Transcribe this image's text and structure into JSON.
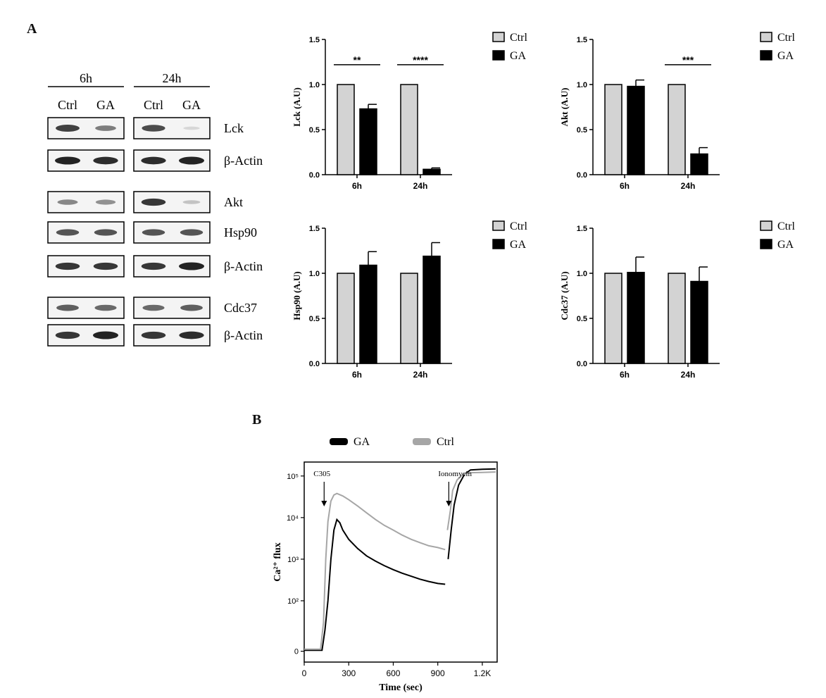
{
  "panels": {
    "a": "A",
    "b": "B"
  },
  "blot": {
    "timepoints": [
      "6h",
      "24h"
    ],
    "conditions": [
      "Ctrl",
      "GA",
      "Ctrl",
      "GA"
    ],
    "rows": [
      {
        "label": "Lck",
        "bands": [
          0.85,
          0.55,
          0.8,
          0.1
        ]
      },
      {
        "label": "β-Actin",
        "bands": [
          1,
          0.95,
          0.95,
          1
        ]
      },
      {
        "label": "Akt",
        "bands": [
          0.5,
          0.45,
          0.9,
          0.2
        ]
      },
      {
        "label": "Hsp90",
        "bands": [
          0.75,
          0.75,
          0.75,
          0.75
        ]
      },
      {
        "label": "β-Actin",
        "bands": [
          0.9,
          0.9,
          0.9,
          1
        ]
      },
      {
        "label": "Cdc37",
        "bands": [
          0.7,
          0.65,
          0.65,
          0.7
        ]
      },
      {
        "label": "β-Actin",
        "bands": [
          0.9,
          1,
          0.9,
          0.95
        ]
      }
    ]
  },
  "chart_data": [
    {
      "type": "bar",
      "categories": [
        "6h",
        "24h"
      ],
      "ylabel": "Lck (A.U)",
      "ylim": [
        0,
        1.5
      ],
      "yticks": [
        "0.0",
        "0.5",
        "1.0",
        "1.5"
      ],
      "legend": "top-right",
      "series": [
        {
          "name": "Ctrl",
          "color": "#d3d3d3",
          "values": [
            1.0,
            1.0
          ],
          "errors": [
            0,
            0
          ]
        },
        {
          "name": "GA",
          "color": "#000000",
          "values": [
            0.73,
            0.06
          ],
          "errors": [
            0.05,
            0.015
          ]
        }
      ],
      "significance": [
        "**",
        "****"
      ]
    },
    {
      "type": "bar",
      "categories": [
        "6h",
        "24h"
      ],
      "ylabel": "Akt (A.U)",
      "ylim": [
        0,
        1.5
      ],
      "yticks": [
        "0.0",
        "0.5",
        "1.0",
        "1.5"
      ],
      "legend": "top-right",
      "series": [
        {
          "name": "Ctrl",
          "color": "#d3d3d3",
          "values": [
            1.0,
            1.0
          ],
          "errors": [
            0,
            0
          ]
        },
        {
          "name": "GA",
          "color": "#000000",
          "values": [
            0.98,
            0.23
          ],
          "errors": [
            0.07,
            0.07
          ]
        }
      ],
      "significance": [
        "",
        "***"
      ]
    },
    {
      "type": "bar",
      "categories": [
        "6h",
        "24h"
      ],
      "ylabel": "Hsp90 (A.U)",
      "ylim": [
        0,
        1.5
      ],
      "yticks": [
        "0.0",
        "0.5",
        "1.0",
        "1.5"
      ],
      "legend": "top-right",
      "series": [
        {
          "name": "Ctrl",
          "color": "#d3d3d3",
          "values": [
            1.0,
            1.0
          ],
          "errors": [
            0,
            0
          ]
        },
        {
          "name": "GA",
          "color": "#000000",
          "values": [
            1.09,
            1.19
          ],
          "errors": [
            0.15,
            0.15
          ]
        }
      ],
      "significance": [
        "",
        ""
      ]
    },
    {
      "type": "bar",
      "categories": [
        "6h",
        "24h"
      ],
      "ylabel": "Cdc37 (A.U)",
      "ylim": [
        0,
        1.5
      ],
      "yticks": [
        "0.0",
        "0.5",
        "1.0",
        "1.5"
      ],
      "legend": "top-right",
      "series": [
        {
          "name": "Ctrl",
          "color": "#d3d3d3",
          "values": [
            1.0,
            1.0
          ],
          "errors": [
            0,
            0
          ]
        },
        {
          "name": "GA",
          "color": "#000000",
          "values": [
            1.01,
            0.91
          ],
          "errors": [
            0.17,
            0.16
          ]
        }
      ],
      "significance": [
        "",
        ""
      ]
    },
    {
      "type": "line",
      "xlabel": "Time (sec)",
      "ylabel": "Ca²⁺ flux",
      "xlim": [
        0,
        1300
      ],
      "xticks": [
        0,
        300,
        600,
        900,
        1200
      ],
      "xtick_labels": [
        "0",
        "300",
        "600",
        "900",
        "1.2K"
      ],
      "y_scale": "log",
      "yticks": [
        "0",
        "10²",
        "10³",
        "10⁴",
        "10⁵"
      ],
      "legend": "top",
      "annotations": [
        {
          "text": "C305",
          "x": 120
        },
        {
          "text": "Ionomycin",
          "x": 960
        }
      ],
      "series": [
        {
          "name": "GA",
          "color": "#000000",
          "points": [
            [
              0,
              2
            ],
            [
              100,
              2
            ],
            [
              120,
              2
            ],
            [
              140,
              20
            ],
            [
              160,
              100
            ],
            [
              180,
              1000
            ],
            [
              200,
              5000
            ],
            [
              220,
              9000
            ],
            [
              240,
              7500
            ],
            [
              260,
              5000
            ],
            [
              300,
              3000
            ],
            [
              360,
              1800
            ],
            [
              420,
              1200
            ],
            [
              480,
              900
            ],
            [
              540,
              700
            ],
            [
              600,
              560
            ],
            [
              660,
              460
            ],
            [
              720,
              390
            ],
            [
              780,
              330
            ],
            [
              840,
              290
            ],
            [
              900,
              260
            ],
            [
              950,
              250
            ],
            [
              970,
              1000
            ],
            [
              990,
              5000
            ],
            [
              1010,
              20000
            ],
            [
              1040,
              60000
            ],
            [
              1080,
              110000
            ],
            [
              1120,
              140000
            ],
            [
              1200,
              145000
            ],
            [
              1290,
              148000
            ]
          ]
        },
        {
          "name": "Ctrl",
          "color": "#a6a6a6",
          "points": [
            [
              0,
              3
            ],
            [
              100,
              3
            ],
            [
              110,
              3
            ],
            [
              130,
              30
            ],
            [
              145,
              1000
            ],
            [
              160,
              8000
            ],
            [
              180,
              25000
            ],
            [
              200,
              35000
            ],
            [
              220,
              38000
            ],
            [
              260,
              33000
            ],
            [
              300,
              27000
            ],
            [
              360,
              19000
            ],
            [
              420,
              13000
            ],
            [
              480,
              9000
            ],
            [
              540,
              6500
            ],
            [
              600,
              5000
            ],
            [
              660,
              3800
            ],
            [
              720,
              3000
            ],
            [
              780,
              2500
            ],
            [
              840,
              2100
            ],
            [
              900,
              1900
            ],
            [
              950,
              1700
            ],
            [
              965,
              5000
            ],
            [
              985,
              15000
            ],
            [
              1000,
              45000
            ],
            [
              1030,
              80000
            ],
            [
              1070,
              110000
            ],
            [
              1120,
              120000
            ],
            [
              1200,
              122000
            ],
            [
              1290,
              125000
            ]
          ]
        }
      ]
    }
  ]
}
